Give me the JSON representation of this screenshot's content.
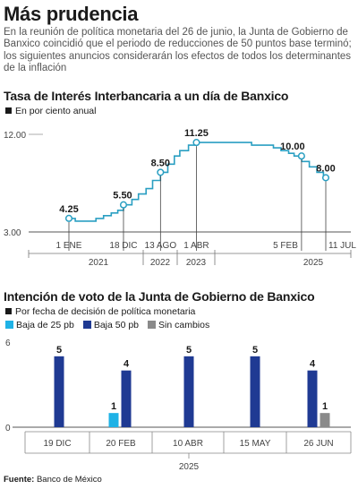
{
  "header": {
    "title": "Más prudencia",
    "intro": "En la reunión de política monetaria del 26 de junio, la Junta de Gobierno de Banxico coincidió que el periodo de reducciones de 50 puntos base terminó; los siguientes anuncios considerarán los efectos de todos los determinantes de la inflación"
  },
  "chart1": {
    "title": "Tasa de Interés Interbancaria a un día de Banxico",
    "subtitle": "En por ciento anual"
  },
  "chart2": {
    "title": "Intención de voto de la Junta de Gobierno de Banxico",
    "subtitle": "Por fecha de decisión de política monetaria"
  },
  "source": {
    "label": "Fuente:",
    "text": "Banco de México"
  },
  "colors": {
    "line": "#2a9fc2",
    "bar_25": "#1fb2e6",
    "bar_50": "#1f3a93",
    "bar_none": "#8a8a8a",
    "axis": "#666666"
  },
  "chart_data": [
    {
      "type": "line",
      "title": "Tasa de Interés Interbancaria a un día de Banxico",
      "ylabel": "En por ciento anual",
      "ylim": [
        3.0,
        12.0
      ],
      "y_ticks": [
        "12.00",
        "3.00"
      ],
      "x_ticks": [
        "1 ENE",
        "18 DIC",
        "13 AGO",
        "1 ABR",
        "5 FEB",
        "11 JUL"
      ],
      "x_years": [
        "2021",
        "2022",
        "2023",
        "2025"
      ],
      "annotations": [
        {
          "date": "2021-01-01",
          "label": "4.25",
          "value": 4.25
        },
        {
          "date": "2021-12-18",
          "label": "5.50",
          "value": 5.5
        },
        {
          "date": "2022-08-13",
          "label": "8.50",
          "value": 8.5
        },
        {
          "date": "2023-04-01",
          "label": "11.25",
          "value": 11.25
        },
        {
          "date": "2025-02-05",
          "label": "10.00",
          "value": 10.0
        },
        {
          "date": "2025-07-11",
          "label": "8.00",
          "value": 8.0
        }
      ],
      "series": [
        {
          "step": true,
          "points": [
            [
              "2021-01-01",
              4.25
            ],
            [
              "2021-02-11",
              4.0
            ],
            [
              "2021-06-24",
              4.25
            ],
            [
              "2021-08-12",
              4.5
            ],
            [
              "2021-09-30",
              4.75
            ],
            [
              "2021-11-11",
              5.0
            ],
            [
              "2021-12-18",
              5.5
            ],
            [
              "2022-02-10",
              6.0
            ],
            [
              "2022-03-24",
              6.5
            ],
            [
              "2022-05-12",
              7.0
            ],
            [
              "2022-06-23",
              7.75
            ],
            [
              "2022-08-13",
              8.5
            ],
            [
              "2022-09-29",
              9.25
            ],
            [
              "2022-11-10",
              10.0
            ],
            [
              "2022-12-15",
              10.5
            ],
            [
              "2023-02-09",
              11.0
            ],
            [
              "2023-04-01",
              11.25
            ],
            [
              "2024-03-21",
              11.0
            ],
            [
              "2024-06-27",
              11.0
            ],
            [
              "2024-08-08",
              10.75
            ],
            [
              "2024-09-26",
              10.5
            ],
            [
              "2024-11-14",
              10.25
            ],
            [
              "2024-12-19",
              10.0
            ],
            [
              "2025-02-05",
              10.0
            ],
            [
              "2025-02-06",
              9.5
            ],
            [
              "2025-03-27",
              9.0
            ],
            [
              "2025-05-15",
              8.5
            ],
            [
              "2025-06-26",
              8.0
            ],
            [
              "2025-07-11",
              8.0
            ]
          ]
        }
      ]
    },
    {
      "type": "bar",
      "title": "Intención de voto de la Junta de Gobierno de Banxico",
      "subtitle": "Por fecha de decisión de política monetaria",
      "categories": [
        "19 DIC",
        "20 FEB",
        "10 ABR",
        "15 MAY",
        "26 JUN"
      ],
      "year": "2025",
      "ylim": [
        0,
        6
      ],
      "y_ticks": [
        "6",
        "0"
      ],
      "series": [
        {
          "name": "Baja de 25 pb",
          "color": "#1fb2e6",
          "values": [
            0,
            1,
            0,
            0,
            0
          ]
        },
        {
          "name": "Baja 50 pb",
          "color": "#1f3a93",
          "values": [
            5,
            4,
            5,
            5,
            4
          ]
        },
        {
          "name": "Sin cambios",
          "color": "#8a8a8a",
          "values": [
            0,
            0,
            0,
            0,
            1
          ]
        }
      ]
    }
  ]
}
